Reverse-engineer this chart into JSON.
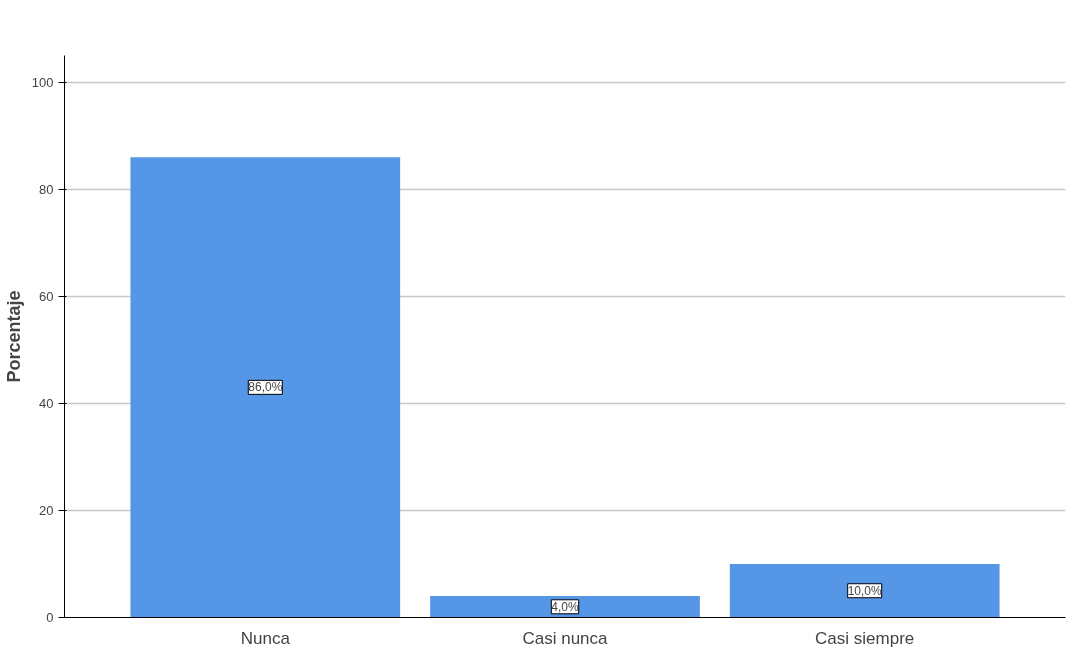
{
  "chart_data": {
    "type": "bar",
    "ylabel": "Porcentaje",
    "categories": [
      "Nunca",
      "Casi nunca",
      "Casi siempre"
    ],
    "values": [
      86,
      4,
      10
    ],
    "color": "#5596e6",
    "value_labels": [
      "86,0%",
      "4,0%",
      "10,0%"
    ],
    "ylim": [
      0,
      105
    ],
    "yticks": [
      0,
      20,
      40,
      60,
      80,
      100
    ],
    "grid": "y"
  }
}
